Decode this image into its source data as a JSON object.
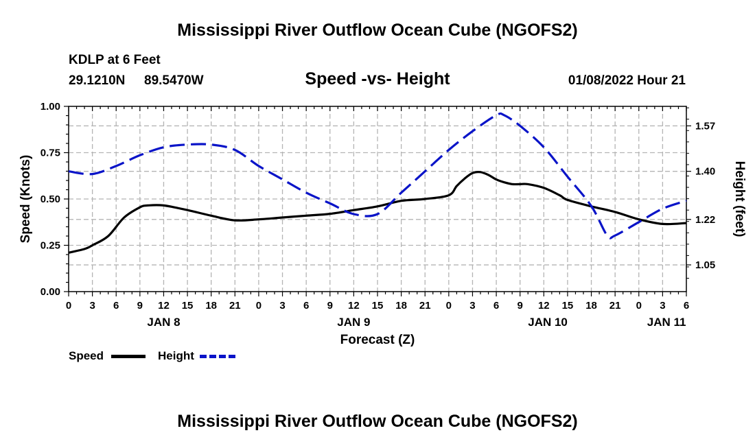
{
  "page_title": "Mississippi River Outflow Ocean Cube (NGOFS2)",
  "footer_title": "Mississippi River Outflow Ocean Cube (NGOFS2)",
  "station": {
    "name": "KDLP at 6 Feet",
    "lat": "29.1210N",
    "lon": "89.5470W"
  },
  "timestamp": "01/08/2022 Hour 21",
  "colors": {
    "speed": "#000000",
    "height": "#0a14c8",
    "grid": "#b4b4b4"
  },
  "chart_data": {
    "type": "line",
    "title": "Speed -vs- Height",
    "xlabel": "Forecast (Z)",
    "ylabel": "Speed (Knots)",
    "y2label": "Height (feet)",
    "x_range": [
      0,
      78
    ],
    "ylim": [
      0,
      1
    ],
    "y2lim": [
      0.95,
      1.643
    ],
    "y_ticks": [
      "0.00",
      "0.25",
      "0.50",
      "0.75",
      "1.00"
    ],
    "y_tick_values": [
      0,
      0.25,
      0.5,
      0.75,
      1.0
    ],
    "y2_ticks": [
      "1.05",
      "1.22",
      "1.40",
      "1.57"
    ],
    "y2_tick_values": [
      1.05,
      1.22,
      1.4,
      1.57
    ],
    "x_tick_values": [
      0,
      3,
      6,
      9,
      12,
      15,
      18,
      21,
      24,
      27,
      30,
      33,
      36,
      39,
      42,
      45,
      48,
      51,
      54,
      57,
      60,
      63,
      66,
      69,
      72,
      75,
      78
    ],
    "x_tick_labels": [
      "0",
      "3",
      "6",
      "9",
      "12",
      "15",
      "18",
      "21",
      "0",
      "3",
      "6",
      "9",
      "12",
      "15",
      "18",
      "21",
      "0",
      "3",
      "6",
      "9",
      "12",
      "15",
      "18",
      "21",
      "0",
      "3",
      "6"
    ],
    "date_labels": [
      {
        "label": "JAN 8",
        "x": 12
      },
      {
        "label": "JAN 9",
        "x": 36
      },
      {
        "label": "JAN 10",
        "x": 60.5
      },
      {
        "label": "JAN 11",
        "x": 75.5
      }
    ],
    "series": [
      {
        "name": "Speed",
        "axis": "left",
        "style": "solid",
        "x": [
          0,
          2,
          3,
          5,
          7,
          9,
          10,
          12,
          15,
          18,
          21,
          24,
          27,
          30,
          33,
          36,
          39,
          42,
          45,
          48,
          49,
          50,
          51,
          52,
          53,
          54,
          55,
          56,
          57,
          58,
          60,
          62,
          63,
          66,
          69,
          72,
          75,
          78
        ],
        "values": [
          0.21,
          0.23,
          0.25,
          0.3,
          0.4,
          0.455,
          0.465,
          0.465,
          0.44,
          0.41,
          0.385,
          0.39,
          0.4,
          0.41,
          0.42,
          0.44,
          0.46,
          0.49,
          0.5,
          0.52,
          0.57,
          0.61,
          0.64,
          0.645,
          0.63,
          0.605,
          0.59,
          0.58,
          0.58,
          0.58,
          0.56,
          0.52,
          0.495,
          0.46,
          0.43,
          0.39,
          0.365,
          0.37
        ]
      },
      {
        "name": "Height",
        "axis": "right",
        "style": "dashed",
        "x": [
          0,
          3,
          6,
          9,
          12,
          15,
          18,
          21,
          24,
          27,
          30,
          33,
          36,
          39,
          42,
          45,
          48,
          51,
          54,
          55,
          57,
          60,
          63,
          66,
          68,
          69,
          72,
          75,
          78
        ],
        "values": [
          1.4,
          1.39,
          1.42,
          1.46,
          1.49,
          1.5,
          1.5,
          1.48,
          1.42,
          1.37,
          1.32,
          1.28,
          1.24,
          1.24,
          1.32,
          1.4,
          1.48,
          1.55,
          1.61,
          1.61,
          1.57,
          1.49,
          1.38,
          1.27,
          1.16,
          1.16,
          1.21,
          1.26,
          1.29
        ]
      }
    ],
    "legend": [
      {
        "label": "Speed",
        "style": "solid"
      },
      {
        "label": "Height",
        "style": "dashed"
      }
    ]
  }
}
